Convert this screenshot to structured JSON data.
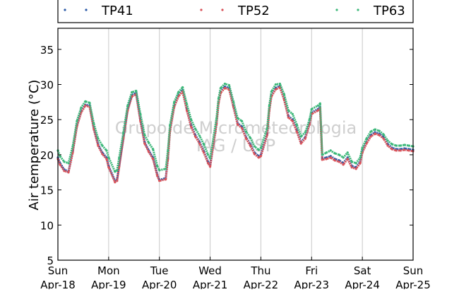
{
  "chart_data": {
    "type": "scatter",
    "title": "",
    "xlabel": "",
    "ylabel": "Air temperature (°C)",
    "ylim": [
      5,
      38
    ],
    "yticks": [
      5,
      10,
      15,
      20,
      25,
      30,
      35
    ],
    "xlim": [
      "2014-04-18 00:00",
      "2014-04-25 00:00"
    ],
    "x_tick_labels": [
      {
        "day": "Sun",
        "date": "Apr-18"
      },
      {
        "day": "Mon",
        "date": "Apr-19"
      },
      {
        "day": "Tue",
        "date": "Apr-20"
      },
      {
        "day": "Wed",
        "date": "Apr-21"
      },
      {
        "day": "Thu",
        "date": "Apr-22"
      },
      {
        "day": "Fri",
        "date": "Apr-23"
      },
      {
        "day": "Sat",
        "date": "Apr-24"
      },
      {
        "day": "Sun",
        "date": "Apr-25"
      }
    ],
    "grid": "vertical",
    "legend_position": "top",
    "watermark": [
      "Grupo de Micrometeorologia",
      "IAG / USP"
    ],
    "x_units": "hours since Apr-18 00:00",
    "series": [
      {
        "name": "TP41",
        "color": "#2b5aa8",
        "x": [
          0,
          1,
          3,
          5,
          7,
          9,
          11,
          13,
          15,
          17,
          19,
          21,
          23,
          24,
          27,
          28,
          29,
          31,
          33,
          35,
          37,
          39,
          41,
          43,
          45,
          47,
          48,
          51,
          52,
          53,
          55,
          57,
          59,
          61,
          63,
          65,
          67,
          69,
          71,
          72,
          75,
          76,
          77,
          79,
          81,
          83,
          85,
          87,
          89,
          91,
          93,
          95,
          96,
          99,
          100,
          101,
          103,
          105,
          107,
          109,
          111,
          113,
          115,
          117,
          119,
          120,
          123,
          124,
          125,
          127,
          129,
          131,
          133,
          135,
          137,
          139,
          141,
          143,
          144,
          146,
          148,
          150,
          152,
          154,
          156,
          158,
          160,
          162,
          164,
          166,
          168
        ],
        "values": [
          19.6,
          18.8,
          17.9,
          17.6,
          20.5,
          24.2,
          26.2,
          27.1,
          27.0,
          23.8,
          21.5,
          20.3,
          19.6,
          18.4,
          16.3,
          16.5,
          18.5,
          22.5,
          26.5,
          28.5,
          28.8,
          25.0,
          21.8,
          20.6,
          19.6,
          17.2,
          16.4,
          16.7,
          19.5,
          23.5,
          27.0,
          28.5,
          29.2,
          26.5,
          24.2,
          22.8,
          21.8,
          20.5,
          19.0,
          18.5,
          24.5,
          27.5,
          29.0,
          29.7,
          29.5,
          27.0,
          24.5,
          24.0,
          22.5,
          21.5,
          20.3,
          19.8,
          20.0,
          23.0,
          26.5,
          28.5,
          29.5,
          29.8,
          28.0,
          25.5,
          25.0,
          23.5,
          21.8,
          22.5,
          24.5,
          26.0,
          26.5,
          26.8,
          19.5,
          19.6,
          19.8,
          19.4,
          19.2,
          18.8,
          19.6,
          18.4,
          18.2,
          19.0,
          20.5,
          21.8,
          22.8,
          23.2,
          23.0,
          22.5,
          21.5,
          21.0,
          20.8,
          20.8,
          20.9,
          20.8,
          20.7
        ]
      },
      {
        "name": "TP52",
        "color": "#d9535a",
        "x": [
          0,
          1,
          3,
          5,
          7,
          9,
          11,
          13,
          15,
          17,
          19,
          21,
          23,
          24,
          27,
          28,
          29,
          31,
          33,
          35,
          37,
          39,
          41,
          43,
          45,
          47,
          48,
          51,
          52,
          53,
          55,
          57,
          59,
          61,
          63,
          65,
          67,
          69,
          71,
          72,
          75,
          76,
          77,
          79,
          81,
          83,
          85,
          87,
          89,
          91,
          93,
          95,
          96,
          99,
          100,
          101,
          103,
          105,
          107,
          109,
          111,
          113,
          115,
          117,
          119,
          120,
          123,
          124,
          125,
          127,
          129,
          131,
          133,
          135,
          137,
          139,
          141,
          143,
          144,
          146,
          148,
          150,
          152,
          154,
          156,
          158,
          160,
          162,
          164,
          166,
          168
        ],
        "values": [
          19.4,
          18.6,
          17.7,
          17.5,
          20.3,
          24.0,
          26.0,
          27.0,
          26.8,
          23.6,
          21.3,
          20.1,
          19.4,
          18.2,
          16.1,
          16.3,
          18.3,
          22.3,
          26.3,
          28.3,
          28.6,
          24.8,
          21.6,
          20.4,
          19.4,
          17.0,
          16.3,
          16.5,
          19.3,
          23.3,
          26.8,
          28.3,
          29.0,
          26.3,
          24.0,
          22.6,
          21.6,
          20.3,
          18.8,
          18.3,
          24.3,
          27.3,
          28.8,
          29.5,
          29.3,
          26.8,
          24.3,
          23.8,
          22.3,
          21.3,
          20.1,
          19.6,
          19.8,
          22.8,
          26.3,
          28.3,
          29.3,
          29.6,
          27.8,
          25.3,
          24.8,
          23.3,
          21.6,
          22.3,
          24.3,
          25.8,
          26.3,
          26.6,
          19.3,
          19.4,
          19.6,
          19.2,
          19.0,
          18.6,
          19.4,
          18.2,
          18.0,
          18.8,
          20.3,
          21.6,
          22.6,
          23.0,
          22.8,
          22.3,
          21.3,
          20.8,
          20.6,
          20.6,
          20.7,
          20.6,
          20.5
        ]
      },
      {
        "name": "TP63",
        "color": "#3db87a",
        "x": [
          0,
          1,
          3,
          5,
          7,
          9,
          11,
          13,
          15,
          17,
          19,
          21,
          23,
          24,
          27,
          28,
          29,
          31,
          33,
          35,
          37,
          39,
          41,
          43,
          45,
          47,
          48,
          51,
          52,
          53,
          55,
          57,
          59,
          61,
          63,
          65,
          67,
          69,
          71,
          72,
          75,
          76,
          77,
          79,
          81,
          83,
          85,
          87,
          89,
          91,
          93,
          95,
          96,
          99,
          100,
          101,
          103,
          105,
          107,
          109,
          111,
          113,
          115,
          117,
          119,
          120,
          123,
          124,
          125,
          127,
          129,
          131,
          133,
          135,
          137,
          139,
          141,
          143,
          144,
          146,
          148,
          150,
          152,
          154,
          156,
          158,
          160,
          162,
          164,
          166,
          168
        ],
        "values": [
          20.6,
          19.8,
          19.0,
          18.8,
          21.2,
          24.8,
          26.7,
          27.6,
          27.4,
          24.4,
          22.3,
          21.3,
          20.6,
          19.6,
          17.6,
          17.8,
          19.6,
          23.2,
          27.0,
          28.9,
          29.1,
          25.8,
          22.8,
          21.7,
          20.8,
          18.4,
          17.8,
          18.0,
          20.5,
          24.2,
          27.5,
          28.9,
          29.6,
          27.2,
          25.0,
          23.7,
          22.7,
          21.5,
          20.0,
          19.5,
          25.2,
          28.0,
          29.5,
          30.1,
          29.9,
          27.6,
          25.2,
          24.8,
          23.3,
          22.4,
          21.2,
          20.7,
          21.0,
          23.8,
          27.0,
          29.0,
          30.0,
          30.1,
          28.6,
          26.3,
          25.8,
          24.3,
          22.6,
          23.2,
          25.0,
          26.5,
          27.0,
          27.3,
          20.0,
          20.3,
          20.6,
          20.2,
          20.0,
          19.6,
          20.3,
          19.0,
          18.8,
          19.6,
          21.0,
          22.3,
          23.3,
          23.6,
          23.4,
          22.9,
          22.0,
          21.5,
          21.3,
          21.3,
          21.4,
          21.3,
          21.2
        ]
      }
    ]
  }
}
